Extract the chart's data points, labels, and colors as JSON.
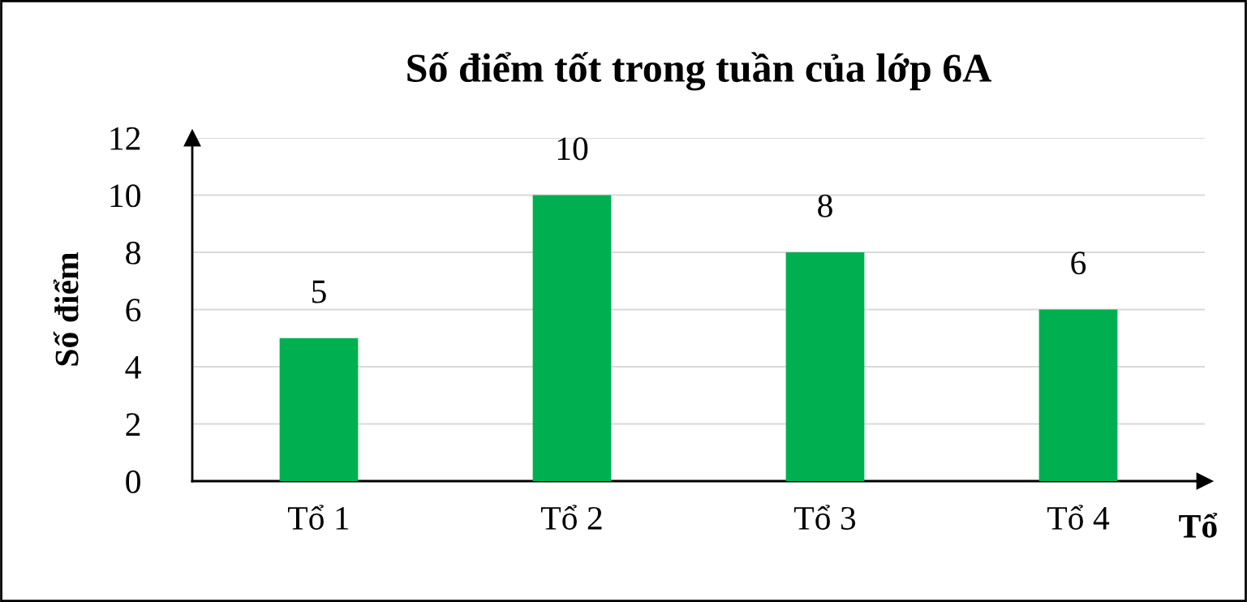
{
  "chart_data": {
    "type": "bar",
    "title": "Số điểm tốt trong tuần của lớp 6A",
    "xlabel": "Tổ",
    "ylabel": "Số điểm",
    "categories": [
      "Tổ 1",
      "Tổ 2",
      "Tổ 3",
      "Tổ 4"
    ],
    "values": [
      5,
      10,
      8,
      6
    ],
    "color": "#00b050",
    "ylim": [
      0,
      12
    ],
    "yticks": [
      0,
      2,
      4,
      6,
      8,
      10,
      12
    ],
    "grid": "y",
    "data_labels": true
  }
}
